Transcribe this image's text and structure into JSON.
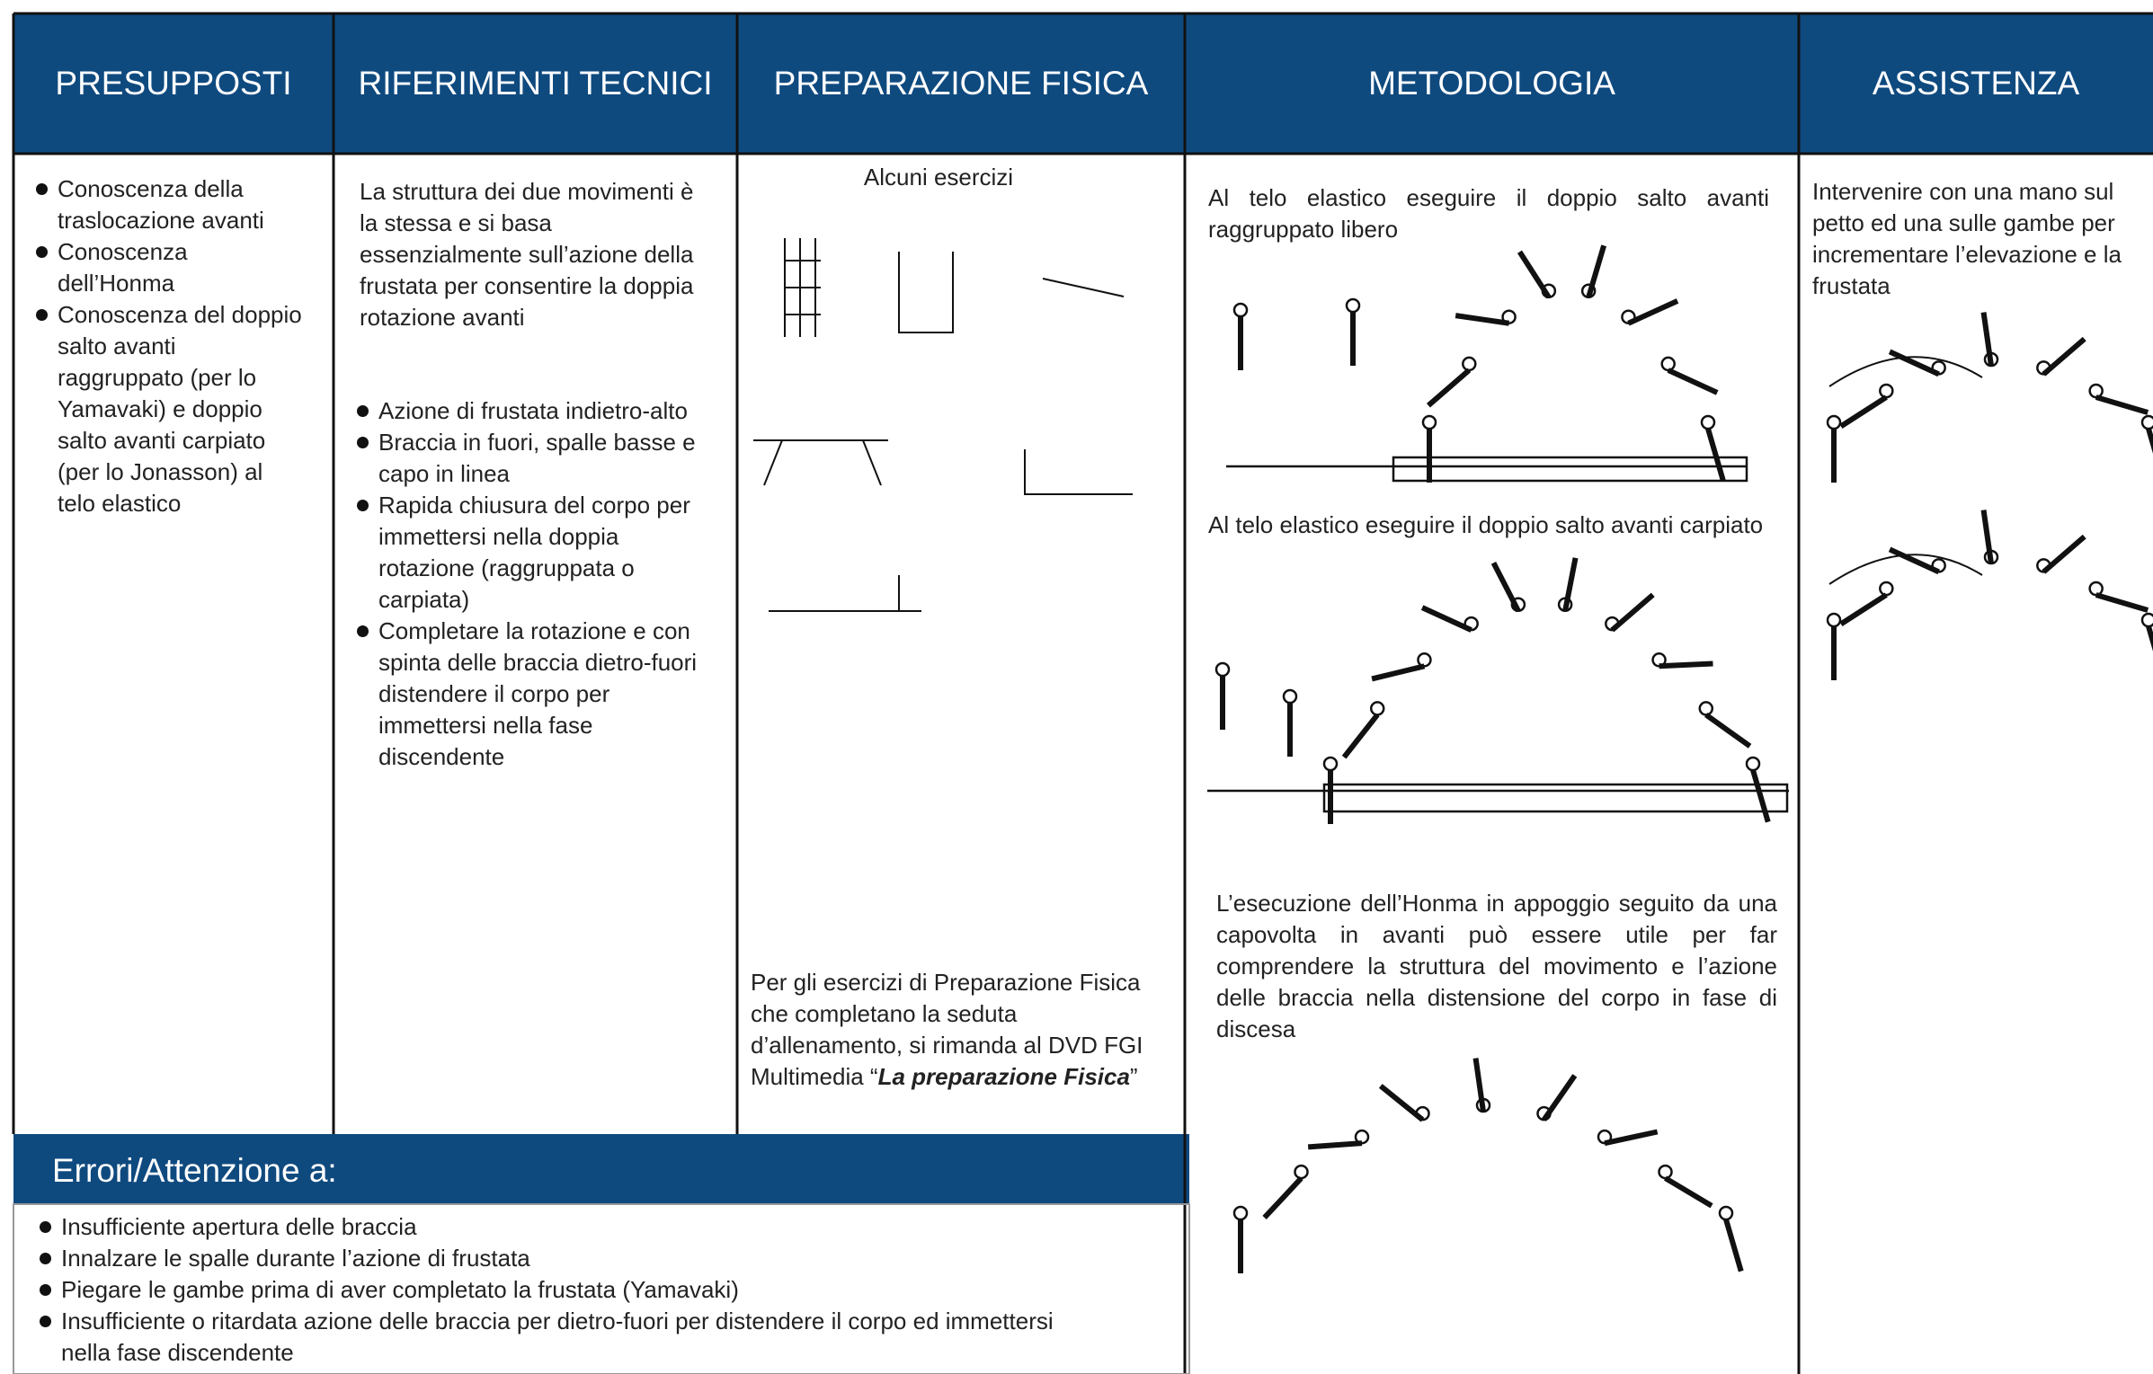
{
  "header": {
    "columns": [
      "PRESUPPOSTI",
      "RIFERIMENTI TECNICI",
      "PREPARAZIONE FISICA",
      "METODOLOGIA",
      "ASSISTENZA"
    ]
  },
  "presupposti": {
    "items": [
      "Conoscenza della traslocazione avanti",
      "Conoscenza dell’Honma",
      "Conoscenza del doppio salto avanti raggruppato (per lo Yamavaki) e doppio salto avanti carpiato (per lo Jonasson) al telo elastico"
    ]
  },
  "riferimenti_tecnici": {
    "intro": "La struttura dei due movimenti è la stessa e si basa essenzialmente sull’azione della frustata per consentire la doppia rotazione avanti",
    "items": [
      "Azione di frustata indietro-alto",
      "Braccia in fuori, spalle basse e capo in linea",
      "Rapida chiusura del corpo per immettersi nella doppia rotazione (raggruppata o carpiata)",
      "Completare la rotazione e con spinta delle braccia dietro-fuori distendere il corpo per immettersi nella fase discendente"
    ]
  },
  "preparazione_fisica": {
    "caption": "Alcuni esercizi",
    "note": {
      "text": "Per gli esercizi di Preparazione Fisica che completano la seduta d’allenamento, si rimanda al DVD FGI Multimedia “",
      "emphasis": "La preparazione Fisica",
      "after": "”"
    }
  },
  "metodologia": {
    "steps": [
      "Al telo elastico eseguire il doppio salto avanti raggruppato libero",
      "Al telo elastico eseguire il doppio salto avanti carpiato",
      "L’esecuzione dell’Honma in appoggio seguito da una capovolta in avanti può essere utile per far comprendere la struttura del movimento e l’azione delle braccia nella distensione del corpo in fase di discesa"
    ]
  },
  "assistenza": {
    "text": "Intervenire con una mano sul petto ed una sulle gambe per incrementare l’elevazione e la frustata"
  },
  "errori": {
    "title": "Errori/Attenzione a:",
    "items": [
      "Insufficiente apertura delle braccia",
      "Innalzare le spalle durante l’azione di frustata",
      "Piegare le gambe prima di aver completato la frustata (Yamavaki)",
      "Insufficiente o ritardata azione delle braccia per dietro-fuori per distendere il corpo ed immettersi nella fase discendente"
    ]
  }
}
